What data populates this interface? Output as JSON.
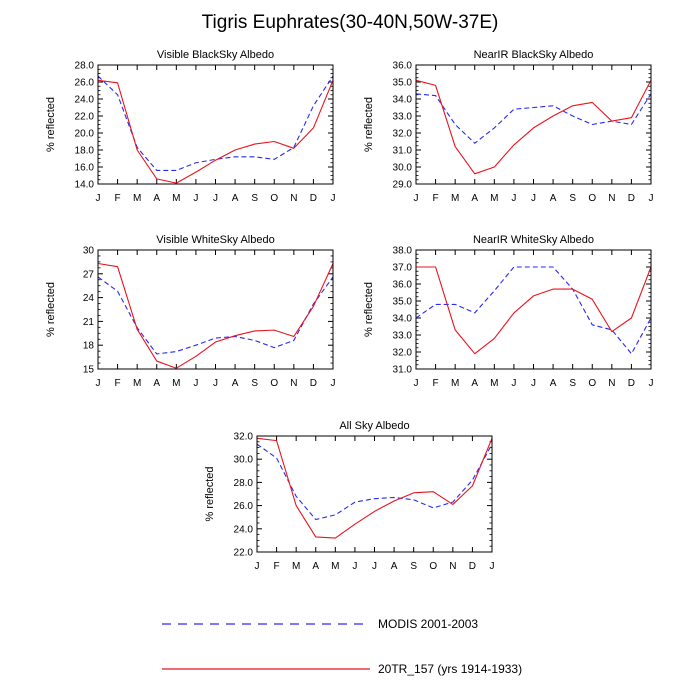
{
  "title": "Tigris Euphrates(30-40N,50W-37E)",
  "legend": [
    {
      "label": "MODIS 2001-2003",
      "color": "#2a2af0",
      "dash": true
    },
    {
      "label": "20TR_157 (yrs 1914-1933)",
      "color": "#e8141e",
      "dash": false
    }
  ],
  "chart_data": [
    {
      "type": "line",
      "title": "Visible BlackSky Albedo",
      "ylabel": "% reflected",
      "categories": [
        "J",
        "F",
        "M",
        "A",
        "M",
        "J",
        "J",
        "A",
        "S",
        "O",
        "N",
        "D",
        "J"
      ],
      "ylim": [
        14.0,
        28.0
      ],
      "yticks": [
        14.0,
        16.0,
        18.0,
        20.0,
        22.0,
        24.0,
        26.0,
        28.0
      ],
      "ytick_labels": [
        "14.0",
        "16.0",
        "18.0",
        "20.0",
        "22.0",
        "24.0",
        "26.0",
        "28.0"
      ],
      "series": [
        {
          "name": "MODIS 2001-2003",
          "values": [
            26.7,
            24.5,
            18.3,
            15.6,
            15.6,
            16.5,
            16.9,
            17.2,
            17.2,
            16.9,
            18.3,
            23.2,
            26.7
          ]
        },
        {
          "name": "20TR_157 (yrs 1914-1933)",
          "values": [
            26.2,
            25.9,
            18.0,
            14.6,
            14.1,
            15.4,
            16.8,
            18.0,
            18.7,
            19.0,
            18.2,
            20.6,
            26.2
          ]
        }
      ]
    },
    {
      "type": "line",
      "title": "NearIR BlackSky Albedo",
      "ylabel": "% reflected",
      "categories": [
        "J",
        "F",
        "M",
        "A",
        "M",
        "J",
        "J",
        "A",
        "S",
        "O",
        "N",
        "D",
        "J"
      ],
      "ylim": [
        29.0,
        36.0
      ],
      "yticks": [
        29.0,
        30.0,
        31.0,
        32.0,
        33.0,
        34.0,
        35.0,
        36.0
      ],
      "ytick_labels": [
        "29.0",
        "30.0",
        "31.0",
        "32.0",
        "33.0",
        "34.0",
        "35.0",
        "36.0"
      ],
      "series": [
        {
          "name": "MODIS 2001-2003",
          "values": [
            34.3,
            34.2,
            32.5,
            31.4,
            32.3,
            33.4,
            33.5,
            33.6,
            33.0,
            32.5,
            32.7,
            32.5,
            34.3
          ]
        },
        {
          "name": "20TR_157 (yrs 1914-1933)",
          "values": [
            35.1,
            34.8,
            31.2,
            29.6,
            30.0,
            31.3,
            32.3,
            33.0,
            33.6,
            33.8,
            32.7,
            32.9,
            35.1
          ]
        }
      ]
    },
    {
      "type": "line",
      "title": "Visible WhiteSky Albedo",
      "ylabel": "% reflected",
      "categories": [
        "J",
        "F",
        "M",
        "A",
        "M",
        "J",
        "J",
        "A",
        "S",
        "O",
        "N",
        "D",
        "J"
      ],
      "ylim": [
        15,
        30
      ],
      "yticks": [
        15,
        18,
        21,
        24,
        27,
        30
      ],
      "ytick_labels": [
        "15",
        "18",
        "21",
        "24",
        "27",
        "30"
      ],
      "series": [
        {
          "name": "MODIS 2001-2003",
          "values": [
            26.6,
            24.8,
            20.2,
            16.9,
            17.2,
            18.0,
            18.9,
            19.1,
            18.6,
            17.7,
            18.6,
            23.2,
            26.6
          ]
        },
        {
          "name": "20TR_157 (yrs 1914-1933)",
          "values": [
            28.3,
            27.9,
            20.0,
            16.0,
            15.1,
            16.6,
            18.4,
            19.2,
            19.8,
            19.9,
            19.1,
            22.9,
            28.3
          ]
        }
      ]
    },
    {
      "type": "line",
      "title": "NearIR WhiteSky Albedo",
      "ylabel": "% reflected",
      "categories": [
        "J",
        "F",
        "M",
        "A",
        "M",
        "J",
        "J",
        "A",
        "S",
        "O",
        "N",
        "D",
        "J"
      ],
      "ylim": [
        31.0,
        38.0
      ],
      "yticks": [
        31.0,
        32.0,
        33.0,
        34.0,
        35.0,
        36.0,
        37.0,
        38.0
      ],
      "ytick_labels": [
        "31.0",
        "32.0",
        "33.0",
        "34.0",
        "35.0",
        "36.0",
        "37.0",
        "38.0"
      ],
      "series": [
        {
          "name": "MODIS 2001-2003",
          "values": [
            34.0,
            34.8,
            34.8,
            34.3,
            35.6,
            37.0,
            37.0,
            37.0,
            35.7,
            33.6,
            33.3,
            31.9,
            34.0
          ]
        },
        {
          "name": "20TR_157 (yrs 1914-1933)",
          "values": [
            37.0,
            37.0,
            33.3,
            31.9,
            32.8,
            34.3,
            35.3,
            35.7,
            35.7,
            35.1,
            33.2,
            34.0,
            37.0
          ]
        }
      ]
    },
    {
      "type": "line",
      "title": "All Sky Albedo",
      "ylabel": "% reflected",
      "categories": [
        "J",
        "F",
        "M",
        "A",
        "M",
        "J",
        "J",
        "A",
        "S",
        "O",
        "N",
        "D",
        "J"
      ],
      "ylim": [
        22.0,
        32.0
      ],
      "yticks": [
        22.0,
        24.0,
        26.0,
        28.0,
        30.0,
        32.0
      ],
      "ytick_labels": [
        "22.0",
        "24.0",
        "26.0",
        "28.0",
        "30.0",
        "32.0"
      ],
      "series": [
        {
          "name": "MODIS 2001-2003",
          "values": [
            31.3,
            30.1,
            26.8,
            24.8,
            25.2,
            26.3,
            26.6,
            26.7,
            26.5,
            25.8,
            26.3,
            28.2,
            31.3
          ]
        },
        {
          "name": "20TR_157 (yrs 1914-1933)",
          "values": [
            31.8,
            31.6,
            26.0,
            23.3,
            23.2,
            24.4,
            25.5,
            26.4,
            27.1,
            27.2,
            26.1,
            27.7,
            31.8
          ]
        }
      ]
    }
  ]
}
